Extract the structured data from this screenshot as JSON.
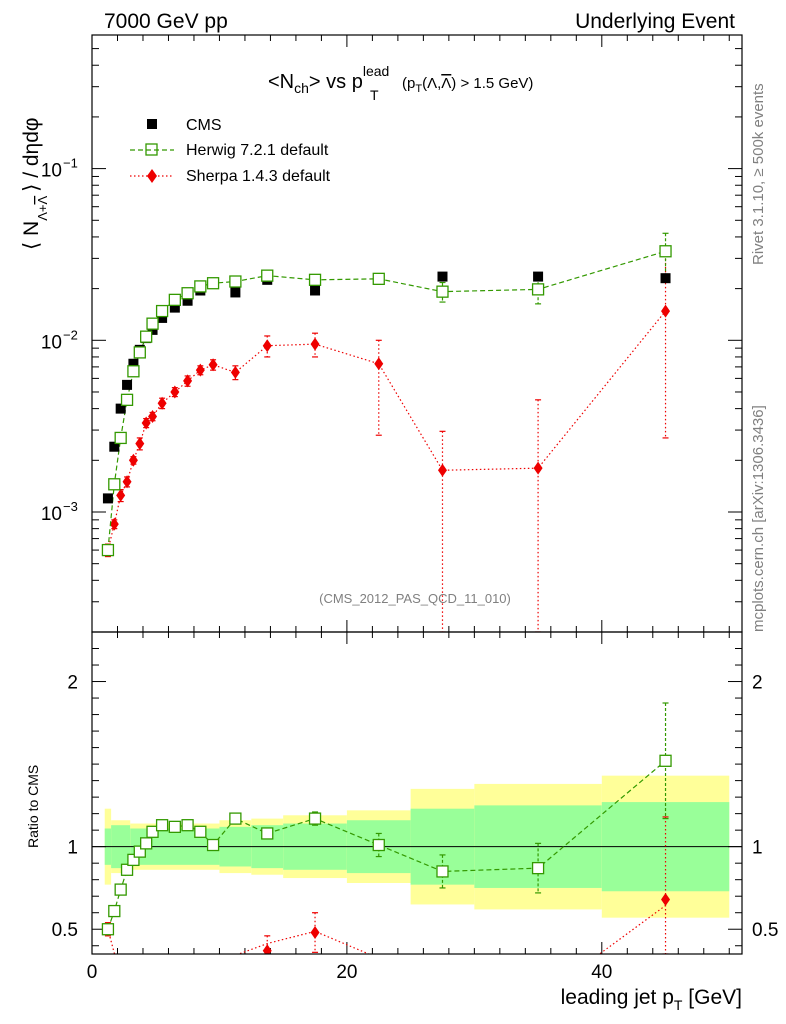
{
  "header": {
    "left": "7000 GeV pp",
    "right": "Underlying Event"
  },
  "side_labels": {
    "rivet": "Rivet 3.1.10, ≥ 500k events",
    "mcplots": "mcplots.cern.ch [arXiv:1306.3436]"
  },
  "watermark": "(CMS_2012_PAS_QCD_11_010)",
  "colors": {
    "cms": "#000000",
    "herwig": "#339900",
    "sherpa": "#ee0000",
    "band_inner": "#99ff99",
    "band_outer": "#ffff99"
  },
  "chart_data": [
    {
      "type": "scatter",
      "title_parts": {
        "a": "<N",
        "a_sub": "ch",
        "b": "> vs p",
        "b_sub": "T",
        "b_sup": "lead",
        "c": "(p",
        "c_sub": "T",
        "d": "(Λ,",
        "d_bar": "Λ",
        "e": ") > 1.5 GeV)"
      },
      "ylabel_parts": {
        "a": "⟨ N",
        "a_sub": "Λ+",
        "a_sub_bar": "Λ",
        "b": "⟩ / dηdφ"
      },
      "y_scale": "log",
      "ylim": [
        0.0002,
        0.6
      ],
      "xlim": [
        0,
        51
      ],
      "y_tick_labels": [
        "10",
        "10",
        "10"
      ],
      "y_tick_exps": [
        "−3",
        "−2",
        "−1"
      ],
      "y_tick_values": [
        0.001,
        0.01,
        0.1
      ],
      "legend_position": "top-left",
      "series": [
        {
          "name": "CMS",
          "marker": "filled-square",
          "x": [
            1.25,
            1.75,
            2.25,
            2.75,
            3.25,
            3.75,
            4.25,
            4.75,
            5.5,
            6.5,
            7.5,
            8.5,
            9.5,
            11.25,
            13.75,
            17.5,
            22.5,
            27.5,
            35,
            45
          ],
          "y": [
            0.0012,
            0.0024,
            0.004,
            0.0055,
            0.0073,
            0.0088,
            0.0103,
            0.0115,
            0.0135,
            0.0155,
            0.017,
            0.0195,
            0.0215,
            0.019,
            0.0225,
            0.0195,
            0.0225,
            0.0235,
            0.0235,
            0.023
          ]
        },
        {
          "name": "Herwig 7.2.1 default",
          "marker": "open-square",
          "x": [
            1.25,
            1.75,
            2.25,
            2.75,
            3.25,
            3.75,
            4.25,
            4.75,
            5.5,
            6.5,
            7.5,
            8.5,
            9.5,
            11.25,
            13.75,
            17.5,
            22.5,
            27.5,
            35,
            45
          ],
          "y": [
            0.0006,
            0.00145,
            0.0027,
            0.0045,
            0.0066,
            0.0085,
            0.0105,
            0.0125,
            0.0148,
            0.0172,
            0.0188,
            0.0206,
            0.0215,
            0.022,
            0.0238,
            0.0225,
            0.0228,
            0.0192,
            0.0198,
            0.033
          ],
          "err": [
            4e-05,
            8e-05,
            0.0001,
            0.0002,
            0.0003,
            0.0003,
            0.0004,
            0.0004,
            0.0004,
            0.0005,
            0.0005,
            0.0005,
            0.0006,
            0.0007,
            0.0009,
            0.001,
            0.0015,
            0.0025,
            0.0035,
            0.009
          ]
        },
        {
          "name": "Sherpa 1.4.3 default",
          "marker": "filled-diamond",
          "x": [
            1.25,
            1.75,
            2.25,
            2.75,
            3.25,
            3.75,
            4.25,
            4.75,
            5.5,
            6.5,
            7.5,
            8.5,
            9.5,
            11.25,
            13.75,
            17.5,
            22.5,
            27.5,
            35,
            45
          ],
          "y": [
            0.0006,
            0.00085,
            0.00125,
            0.0015,
            0.002,
            0.0025,
            0.0033,
            0.0036,
            0.0043,
            0.005,
            0.0058,
            0.0067,
            0.0072,
            0.0065,
            0.0093,
            0.0095,
            0.0073,
            0.00175,
            0.0018,
            0.0148
          ],
          "err_lo": [
            5e-05,
            5e-05,
            0.0001,
            0.0001,
            0.0001,
            0.0002,
            0.0002,
            0.0002,
            0.0003,
            0.0003,
            0.0004,
            0.0004,
            0.0005,
            0.0006,
            0.0013,
            0.0015,
            0.0045,
            0.0016,
            0.0017,
            0.0121
          ],
          "err_hi": [
            5e-05,
            5e-05,
            0.0001,
            0.0001,
            0.0001,
            0.0002,
            0.0002,
            0.0002,
            0.0003,
            0.0003,
            0.0004,
            0.0004,
            0.0005,
            0.0006,
            0.0013,
            0.0015,
            0.0027,
            0.0012,
            0.0027,
            0.0202
          ]
        }
      ]
    },
    {
      "type": "scatter",
      "ylabel": "Ratio to CMS",
      "xlabel_parts": {
        "a": "leading jet p",
        "a_sub": "T",
        "b": " [GeV]"
      },
      "ylim": [
        0.35,
        2.3
      ],
      "xlim": [
        0,
        51
      ],
      "x_tick_values": [
        0,
        20,
        40
      ],
      "x_tick_labels": [
        "0",
        "20",
        "40"
      ],
      "y_tick_values": [
        0.5,
        1,
        2
      ],
      "y_tick_labels": [
        "0.5",
        "1",
        "2"
      ],
      "reference_line": 1,
      "bands": {
        "edges": [
          1,
          1.5,
          3,
          10,
          12.5,
          15,
          20,
          25,
          30,
          40,
          50
        ],
        "inner": [
          0.11,
          0.13,
          0.11,
          0.12,
          0.13,
          0.14,
          0.16,
          0.23,
          0.25,
          0.27,
          0.38
        ],
        "outer": [
          0.23,
          0.16,
          0.14,
          0.16,
          0.17,
          0.19,
          0.22,
          0.35,
          0.38,
          0.43,
          0.72
        ]
      },
      "series": [
        {
          "name": "Herwig 7.2.1 default",
          "marker": "open-square",
          "x": [
            1.25,
            1.75,
            2.25,
            2.75,
            3.25,
            3.75,
            4.25,
            4.75,
            5.5,
            6.5,
            7.5,
            8.5,
            9.5,
            11.25,
            13.75,
            17.5,
            22.5,
            27.5,
            35,
            45
          ],
          "y": [
            0.5,
            0.61,
            0.74,
            0.86,
            0.92,
            0.97,
            1.02,
            1.09,
            1.13,
            1.12,
            1.13,
            1.09,
            1.01,
            1.17,
            1.08,
            1.17,
            1.01,
            0.85,
            0.87,
            1.52
          ],
          "err": [
            0.02,
            0.02,
            0.02,
            0.02,
            0.02,
            0.02,
            0.02,
            0.02,
            0.02,
            0.02,
            0.02,
            0.02,
            0.02,
            0.03,
            0.03,
            0.04,
            0.07,
            0.1,
            0.15,
            0.35
          ]
        },
        {
          "name": "Sherpa 1.4.3 default",
          "marker": "filled-diamond",
          "x": [
            1.25,
            13.75,
            17.5,
            45
          ],
          "y": [
            0.5,
            0.37,
            0.48,
            0.68
          ],
          "err": [
            0.04,
            0.09,
            0.12,
            0.5
          ]
        }
      ]
    }
  ]
}
